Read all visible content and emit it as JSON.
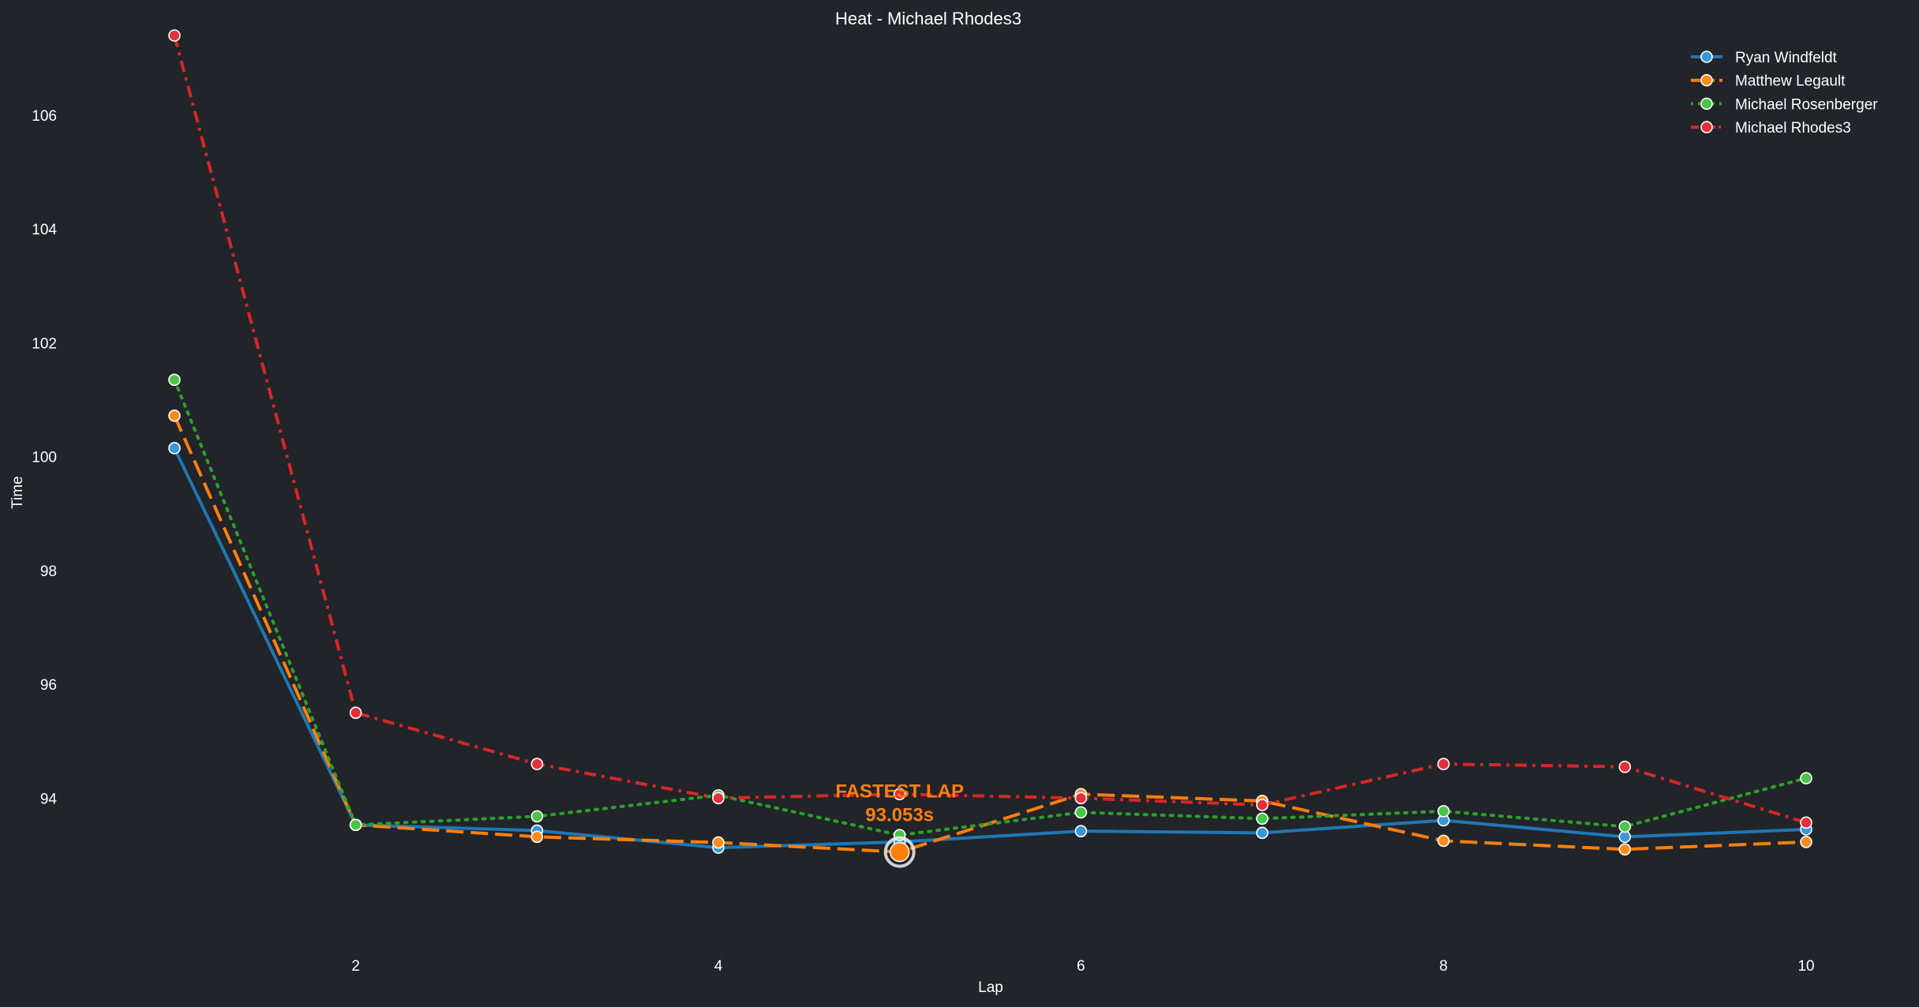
{
  "chart_data": {
    "type": "line",
    "title": "Heat - Michael Rhodes3",
    "xlabel": "Lap",
    "ylabel": "Time",
    "x": [
      1,
      2,
      3,
      4,
      5,
      6,
      7,
      8,
      9,
      10
    ],
    "xticks": [
      2,
      4,
      6,
      8,
      10
    ],
    "yticks": [
      94,
      96,
      98,
      100,
      102,
      104,
      106
    ],
    "xlim": [
      0.9,
      10.1
    ],
    "ylim": [
      91.8,
      107.4
    ],
    "grid": false,
    "legend_position": "top-right",
    "series": [
      {
        "name": "Ryan Windfeldt",
        "color": "#1f77b4",
        "marker_color": "#3a96d8",
        "dash": "solid",
        "values": [
          100.15,
          93.53,
          93.43,
          93.13,
          93.23,
          93.42,
          93.39,
          93.61,
          93.32,
          93.45
        ]
      },
      {
        "name": "Matthew Legault",
        "color": "#ff7f0e",
        "marker_color": "#ff8c1f",
        "dash": "dashed",
        "values": [
          100.72,
          93.53,
          93.32,
          93.22,
          93.053,
          94.07,
          93.95,
          93.25,
          93.1,
          93.23
        ]
      },
      {
        "name": "Michael Rosenberger",
        "color": "#2ca02c",
        "marker_color": "#4cc44c",
        "dash": "dotted",
        "values": [
          101.35,
          93.53,
          93.68,
          94.05,
          93.35,
          93.75,
          93.64,
          93.77,
          93.5,
          94.35
        ]
      },
      {
        "name": "Michael Rhodes3",
        "color": "#d62728",
        "marker_color": "#e3303a",
        "dash": "dashdot",
        "values": [
          107.4,
          95.5,
          94.6,
          94.0,
          94.07,
          94.0,
          93.88,
          94.6,
          94.55,
          93.57
        ]
      }
    ],
    "annotations": [
      {
        "series": "Matthew Legault",
        "x": 5,
        "y": 93.053,
        "line1": "FASTEST LAP",
        "line2": "93.053s",
        "color": "#ff7f0e"
      }
    ]
  }
}
